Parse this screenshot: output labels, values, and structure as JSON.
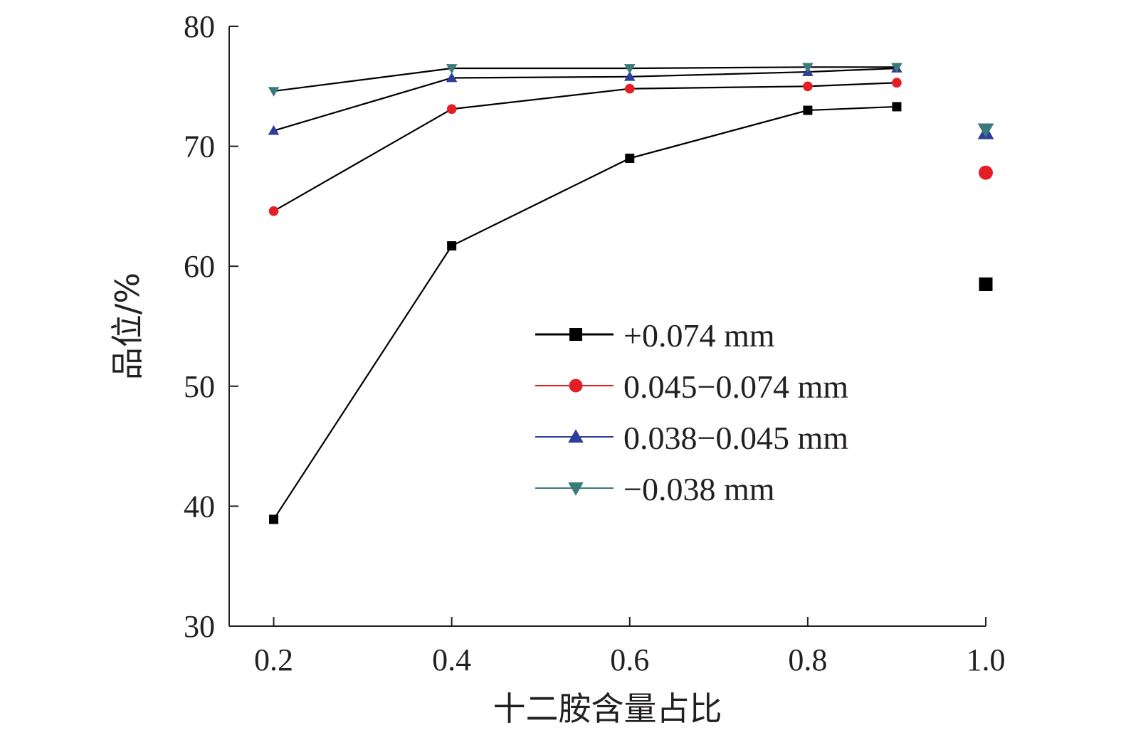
{
  "chart_data": {
    "type": "line",
    "xlabel": "十二胺含量占比",
    "ylabel": "品位/%",
    "xlim": [
      0.15,
      1.0
    ],
    "ylim": [
      30,
      80
    ],
    "x_ticks": [
      "0.2",
      "0.4",
      "0.6",
      "0.8",
      "1.0"
    ],
    "y_ticks": [
      "30",
      "40",
      "50",
      "60",
      "70",
      "80"
    ],
    "grid": false,
    "legend_position": "center-right",
    "series": [
      {
        "name": "+0.074 mm",
        "color": "#000000",
        "marker": "square",
        "x": [
          0.2,
          0.4,
          0.6,
          0.8,
          0.9
        ],
        "y": [
          38.9,
          61.7,
          69.0,
          73.0,
          73.3
        ],
        "isolated_point": {
          "x": 1.0,
          "y": 58.5
        }
      },
      {
        "name": "0.045−0.074 mm",
        "color": "#e31e24",
        "marker": "circle",
        "x": [
          0.2,
          0.4,
          0.6,
          0.8,
          0.9
        ],
        "y": [
          64.6,
          73.1,
          74.8,
          75.0,
          75.3
        ],
        "isolated_point": {
          "x": 1.0,
          "y": 67.8
        }
      },
      {
        "name": "0.038−0.045 mm",
        "color": "#2e3d97",
        "marker": "triangle-up",
        "x": [
          0.2,
          0.4,
          0.6,
          0.8,
          0.9
        ],
        "y": [
          71.3,
          75.7,
          75.8,
          76.2,
          76.5
        ],
        "isolated_point": {
          "x": 1.0,
          "y": 71.1
        }
      },
      {
        "name": "−0.038 mm",
        "color": "#3a7b7a",
        "marker": "triangle-down",
        "x": [
          0.2,
          0.4,
          0.6,
          0.8,
          0.9
        ],
        "y": [
          74.6,
          76.5,
          76.5,
          76.6,
          76.6
        ],
        "isolated_point": {
          "x": 1.0,
          "y": 71.4
        }
      }
    ]
  }
}
